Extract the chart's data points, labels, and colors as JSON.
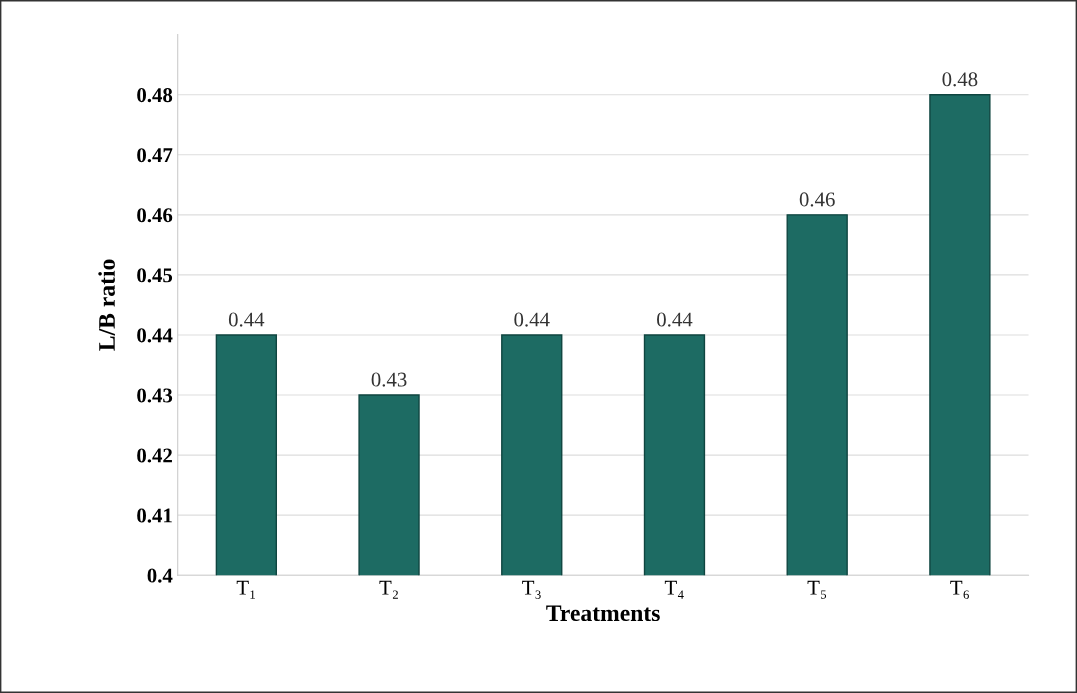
{
  "chart_data": {
    "type": "bar",
    "xlabel": "Treatments",
    "ylabel": "L/B ratio",
    "categories": [
      "T₁",
      "T₂",
      "T₃",
      "T₄",
      "T₅",
      "T₆"
    ],
    "values": [
      0.44,
      0.43,
      0.44,
      0.44,
      0.46,
      0.48
    ],
    "color": "#1d6b63",
    "data_labels": true,
    "ylim": [
      0.4,
      0.49
    ],
    "yticks": [
      0.4,
      0.41,
      0.42,
      0.43,
      0.44,
      0.45,
      0.46,
      0.47,
      0.48
    ],
    "grid": "y"
  }
}
